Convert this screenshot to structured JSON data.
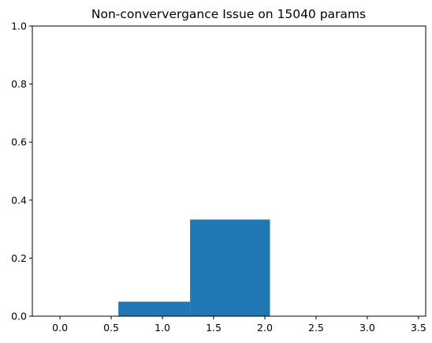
{
  "chart_data": {
    "type": "bar",
    "title": "Non-conververgance Issue  on 15040 params",
    "xlabel": "",
    "ylabel": "",
    "xlim": [
      -0.27,
      3.57
    ],
    "ylim": [
      0,
      1.0
    ],
    "grid": false,
    "bar_color": "#1f77b4",
    "bars": [
      {
        "x0": 0.57,
        "x1": 1.27,
        "value": 0.05
      },
      {
        "x0": 1.27,
        "x1": 2.05,
        "value": 0.333
      }
    ],
    "x_ticks": [
      {
        "value": 0.0,
        "label": "0.0"
      },
      {
        "value": 0.5,
        "label": "0.5"
      },
      {
        "value": 1.0,
        "label": "1.0"
      },
      {
        "value": 1.5,
        "label": "1.5"
      },
      {
        "value": 2.0,
        "label": "2.0"
      },
      {
        "value": 2.5,
        "label": "2.5"
      },
      {
        "value": 3.0,
        "label": "3.0"
      },
      {
        "value": 3.5,
        "label": "3.5"
      }
    ],
    "y_ticks": [
      {
        "value": 0.0,
        "label": "0.0"
      },
      {
        "value": 0.2,
        "label": "0.2"
      },
      {
        "value": 0.4,
        "label": "0.4"
      },
      {
        "value": 0.6,
        "label": "0.6"
      },
      {
        "value": 0.8,
        "label": "0.8"
      },
      {
        "value": 1.0,
        "label": "1.0"
      }
    ]
  }
}
